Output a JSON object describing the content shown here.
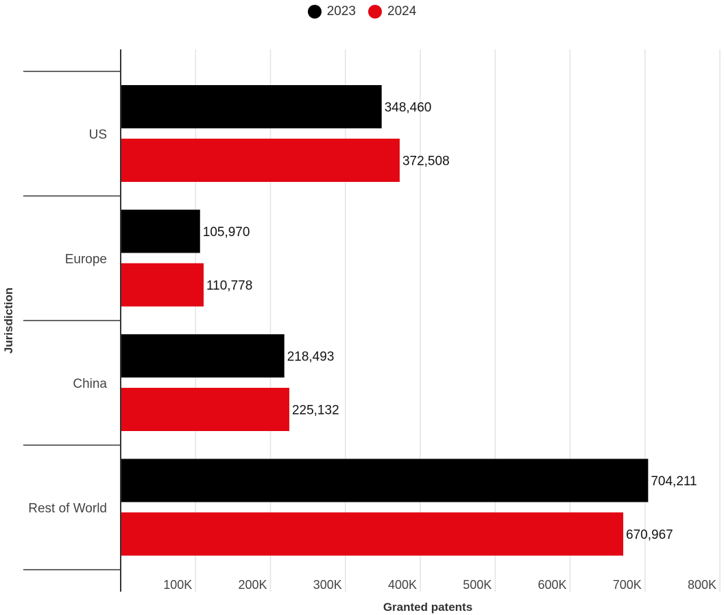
{
  "chart_data": {
    "type": "bar",
    "orientation": "horizontal",
    "title": "",
    "xlabel": "Granted patents",
    "ylabel": "Jurisdiction",
    "categories": [
      "US",
      "Europe",
      "China",
      "Rest of World"
    ],
    "series": [
      {
        "name": "2023",
        "color": "#000000",
        "values": [
          348460,
          105970,
          218493,
          704211
        ],
        "labels": [
          "348,460",
          "105,970",
          "218,493",
          "704,211"
        ]
      },
      {
        "name": "2024",
        "color": "#e30613",
        "values": [
          372508,
          110778,
          225132,
          670967
        ],
        "labels": [
          "372,508",
          "110,778",
          "225,132",
          "670,967"
        ]
      }
    ],
    "xlim": [
      0,
      800000
    ],
    "xticks": [
      100000,
      200000,
      300000,
      400000,
      500000,
      600000,
      700000,
      800000
    ],
    "xtick_labels": [
      "100K",
      "200K",
      "300K",
      "400K",
      "500K",
      "600K",
      "700K",
      "800K"
    ],
    "grid": true,
    "legend_position": "top-center"
  }
}
